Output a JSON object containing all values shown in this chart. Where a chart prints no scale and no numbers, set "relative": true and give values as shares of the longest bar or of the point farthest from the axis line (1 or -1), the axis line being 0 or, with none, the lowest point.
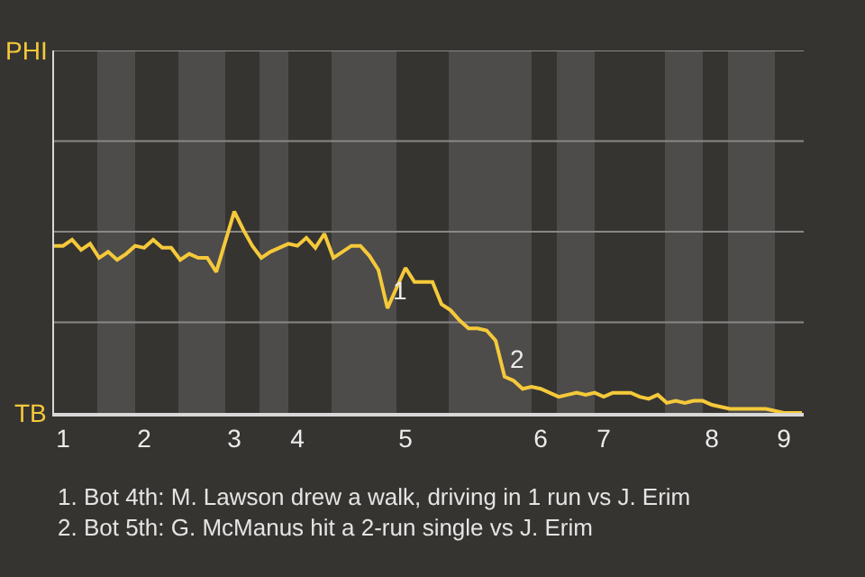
{
  "chart_data": {
    "type": "line",
    "relative": true,
    "categories": [
      null,
      "1",
      null,
      null,
      null,
      null,
      null,
      null,
      null,
      null,
      "2",
      null,
      null,
      null,
      null,
      null,
      null,
      null,
      null,
      null,
      "3",
      null,
      null,
      null,
      null,
      null,
      null,
      "4",
      null,
      null,
      null,
      null,
      null,
      null,
      null,
      null,
      null,
      null,
      null,
      "5",
      null,
      null,
      null,
      null,
      null,
      null,
      null,
      null,
      null,
      null,
      null,
      null,
      null,
      null,
      "6",
      null,
      null,
      null,
      null,
      null,
      null,
      "7",
      null,
      null,
      null,
      null,
      null,
      null,
      null,
      null,
      null,
      null,
      null,
      "8",
      null,
      null,
      null,
      null,
      null,
      null,
      null,
      "9",
      null,
      null
    ],
    "series": [
      {
        "color": "#f5c93a",
        "values": [
          0.83,
          0.83,
          0.86,
          0.81,
          0.84,
          0.77,
          0.8,
          0.76,
          0.79,
          0.83,
          0.82,
          0.86,
          0.82,
          0.82,
          0.76,
          0.79,
          0.77,
          0.77,
          0.7,
          0.85,
          1,
          0.91,
          0.83,
          0.77,
          0.8,
          0.82,
          0.84,
          0.83,
          0.87,
          0.82,
          0.89,
          0.77,
          0.8,
          0.83,
          0.83,
          0.78,
          0.71,
          0.52,
          0.62,
          0.72,
          0.65,
          0.65,
          0.65,
          0.54,
          0.51,
          0.46,
          0.42,
          0.42,
          0.41,
          0.36,
          0.18,
          0.16,
          0.12,
          0.13,
          0.12,
          0.1,
          0.08,
          0.09,
          0.1,
          0.09,
          0.1,
          0.08,
          0.1,
          0.1,
          0.1,
          0.08,
          0.07,
          0.09,
          0.05,
          0.06,
          0.05,
          0.06,
          0.06,
          0.04,
          0.03,
          0.02,
          0.02,
          0.02,
          0.02,
          0.02,
          0.01,
          0,
          0,
          0
        ],
        "marker": "none"
      }
    ],
    "line_style": "solid",
    "ref_lines": [
      {
        "axis": "y",
        "value": 0.45,
        "color": "#8a8886"
      },
      {
        "axis": "y",
        "value": 0.9,
        "color": "#8a8886"
      },
      {
        "axis": "y",
        "value": 1.35,
        "color": "#8a8886"
      },
      {
        "axis": "y",
        "value": 1.8,
        "color": "#8a8886"
      }
    ],
    "annotations": [
      "PHI",
      "TB",
      "1",
      "2",
      "1. Bot 4th: M. Lawson drew a walk, driving in 1 run vs J. Erim",
      "2. Bot 5th: G. McManus hit a 2-run single vs J. Erim"
    ]
  }
}
